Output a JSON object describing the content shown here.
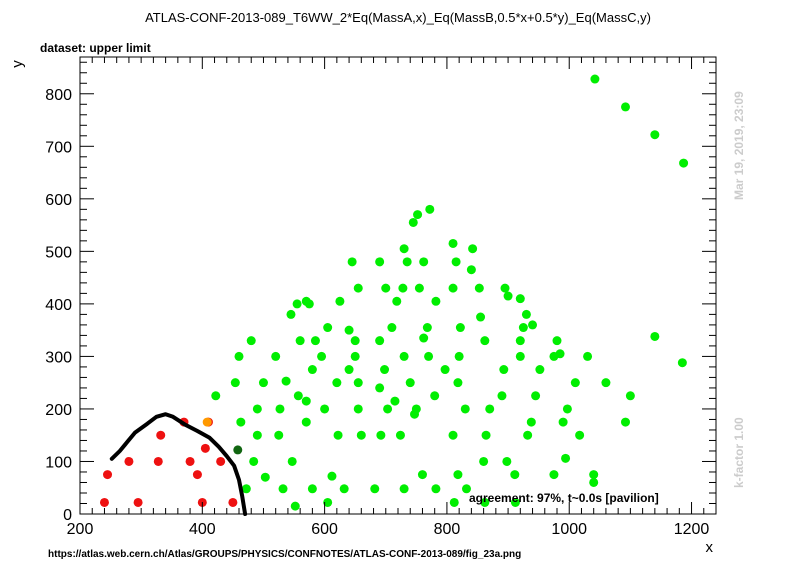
{
  "header": {
    "title": "ATLAS-CONF-2013-089_T6WW_2*Eq(MassA,x)_Eq(MassB,0.5*x+0.5*y)_Eq(MassC,y)",
    "dataset": "dataset: upper limit"
  },
  "annotations": {
    "agreement": "agreement: 97%, t~0.0s [pavilion]",
    "date": "Mar 19, 2019, 23:09",
    "kfactor": "k-factor 1.00",
    "url": "https://atlas.web.cern.ch/Atlas/GROUPS/PHYSICS/CONFNOTES/ATLAS-CONF-2013-089/fig_23a.png"
  },
  "colors": {
    "allowed": "#00ee00",
    "excluded": "#ee1111",
    "orange": "#ff9900",
    "darkgreen": "#116611",
    "contour": "#000000"
  },
  "chart_data": {
    "type": "scatter",
    "title": "ATLAS-CONF-2013-089_T6WW_2*Eq(MassA,x)_Eq(MassB,0.5*x+0.5*y)_Eq(MassC,y)",
    "xlabel": "x",
    "ylabel": "y",
    "xlim": [
      200,
      1240
    ],
    "ylim": [
      0,
      870
    ],
    "xticks": [
      200,
      400,
      600,
      800,
      1000,
      1200
    ],
    "yticks": [
      0,
      100,
      200,
      300,
      400,
      500,
      600,
      700,
      800
    ],
    "grid": false,
    "series": [
      {
        "class": "excluded",
        "points": [
          [
            240,
            22
          ],
          [
            295,
            22
          ],
          [
            400,
            22
          ],
          [
            450,
            22
          ],
          [
            245,
            75
          ],
          [
            392,
            75
          ],
          [
            280,
            100
          ],
          [
            328,
            100
          ],
          [
            380,
            100
          ],
          [
            430,
            100
          ],
          [
            332,
            150
          ],
          [
            405,
            125
          ],
          [
            370,
            175
          ],
          [
            410,
            175
          ]
        ]
      },
      {
        "class": "orange",
        "points": [
          [
            408,
            175
          ]
        ]
      },
      {
        "class": "darkgreen",
        "points": [
          [
            458,
            122
          ]
        ]
      },
      {
        "class": "allowed",
        "points": [
          [
            552,
            15
          ],
          [
            605,
            22
          ],
          [
            812,
            22
          ],
          [
            862,
            22
          ],
          [
            912,
            22
          ],
          [
            472,
            48
          ],
          [
            532,
            48
          ],
          [
            580,
            48
          ],
          [
            632,
            48
          ],
          [
            682,
            48
          ],
          [
            730,
            48
          ],
          [
            782,
            48
          ],
          [
            832,
            48
          ],
          [
            1040,
            60
          ],
          [
            503,
            70
          ],
          [
            612,
            72
          ],
          [
            760,
            75
          ],
          [
            818,
            75
          ],
          [
            911,
            75
          ],
          [
            975,
            75
          ],
          [
            1040,
            75
          ],
          [
            484,
            100
          ],
          [
            547,
            100
          ],
          [
            860,
            100
          ],
          [
            898,
            100
          ],
          [
            994,
            106
          ],
          [
            490,
            150
          ],
          [
            525,
            150
          ],
          [
            622,
            150
          ],
          [
            660,
            150
          ],
          [
            692,
            150
          ],
          [
            724,
            150
          ],
          [
            810,
            150
          ],
          [
            864,
            150
          ],
          [
            932,
            150
          ],
          [
            1017,
            150
          ],
          [
            463,
            175
          ],
          [
            570,
            175
          ],
          [
            747,
            190
          ],
          [
            938,
            175
          ],
          [
            990,
            175
          ],
          [
            1092,
            175
          ],
          [
            490,
            200
          ],
          [
            527,
            200
          ],
          [
            600,
            200
          ],
          [
            655,
            200
          ],
          [
            703,
            200
          ],
          [
            750,
            200
          ],
          [
            830,
            200
          ],
          [
            870,
            200
          ],
          [
            997,
            200
          ],
          [
            1100,
            225
          ],
          [
            422,
            225
          ],
          [
            557,
            225
          ],
          [
            780,
            225
          ],
          [
            890,
            225
          ],
          [
            945,
            225
          ],
          [
            454,
            250
          ],
          [
            500,
            250
          ],
          [
            620,
            250
          ],
          [
            655,
            250
          ],
          [
            740,
            250
          ],
          [
            818,
            250
          ],
          [
            1010,
            250
          ],
          [
            1060,
            250
          ],
          [
            537,
            253
          ],
          [
            580,
            275
          ],
          [
            640,
            275
          ],
          [
            698,
            275
          ],
          [
            797,
            275
          ],
          [
            893,
            275
          ],
          [
            952,
            275
          ],
          [
            690,
            240
          ],
          [
            715,
            215
          ],
          [
            570,
            215
          ],
          [
            460,
            300
          ],
          [
            520,
            300
          ],
          [
            595,
            300
          ],
          [
            650,
            300
          ],
          [
            730,
            300
          ],
          [
            770,
            300
          ],
          [
            820,
            300
          ],
          [
            920,
            300
          ],
          [
            975,
            300
          ],
          [
            985,
            305
          ],
          [
            1030,
            300
          ],
          [
            1185,
            288
          ],
          [
            480,
            330
          ],
          [
            560,
            330
          ],
          [
            585,
            330
          ],
          [
            650,
            330
          ],
          [
            690,
            330
          ],
          [
            762,
            335
          ],
          [
            862,
            330
          ],
          [
            920,
            330
          ],
          [
            980,
            330
          ],
          [
            1140,
            338
          ],
          [
            605,
            355
          ],
          [
            640,
            350
          ],
          [
            710,
            355
          ],
          [
            768,
            355
          ],
          [
            822,
            355
          ],
          [
            925,
            355
          ],
          [
            940,
            360
          ],
          [
            545,
            380
          ],
          [
            625,
            405
          ],
          [
            718,
            405
          ],
          [
            782,
            405
          ],
          [
            855,
            375
          ],
          [
            930,
            380
          ],
          [
            555,
            400
          ],
          [
            570,
            405
          ],
          [
            575,
            400
          ],
          [
            700,
            430
          ],
          [
            728,
            430
          ],
          [
            755,
            430
          ],
          [
            810,
            430
          ],
          [
            853,
            430
          ],
          [
            895,
            430
          ],
          [
            900,
            415
          ],
          [
            920,
            410
          ],
          [
            655,
            430
          ],
          [
            645,
            480
          ],
          [
            690,
            480
          ],
          [
            735,
            480
          ],
          [
            762,
            480
          ],
          [
            815,
            480
          ],
          [
            840,
            465
          ],
          [
            730,
            505
          ],
          [
            810,
            515
          ],
          [
            842,
            505
          ],
          [
            745,
            555
          ],
          [
            752,
            570
          ],
          [
            772,
            580
          ],
          [
            1042,
            828
          ],
          [
            1092,
            775
          ],
          [
            1140,
            722
          ],
          [
            1187,
            668
          ]
        ]
      }
    ],
    "contour": [
      [
        252,
        105
      ],
      [
        265,
        120
      ],
      [
        290,
        155
      ],
      [
        310,
        172
      ],
      [
        325,
        185
      ],
      [
        340,
        190
      ],
      [
        352,
        185
      ],
      [
        372,
        170
      ],
      [
        392,
        158
      ],
      [
        412,
        145
      ],
      [
        427,
        128
      ],
      [
        440,
        110
      ],
      [
        452,
        92
      ],
      [
        460,
        65
      ],
      [
        465,
        35
      ],
      [
        470,
        0
      ]
    ]
  }
}
